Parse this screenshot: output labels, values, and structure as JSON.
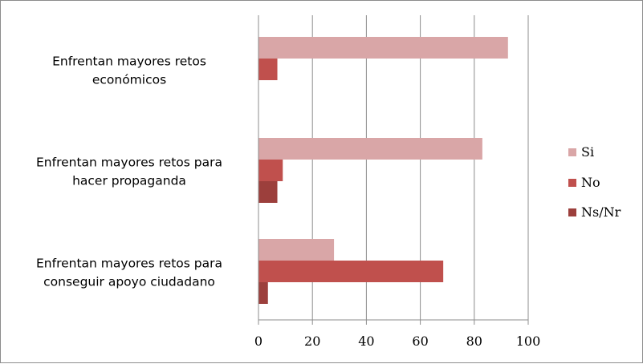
{
  "chart_data": {
    "type": "bar",
    "orientation": "horizontal",
    "categories": [
      [
        "Enfrentan mayores retos",
        "económicos"
      ],
      [
        "Enfrentan mayores retos para",
        "hacer propaganda"
      ],
      [
        "Enfrentan mayores retos para",
        "conseguir apoyo ciudadano"
      ]
    ],
    "series": [
      {
        "name": "Si",
        "values": [
          92.5,
          83,
          28
        ]
      },
      {
        "name": "No",
        "values": [
          7,
          9,
          68.5
        ]
      },
      {
        "name": "Ns/Nr",
        "values": [
          0,
          7,
          3.5
        ]
      }
    ],
    "xlim": [
      0,
      100
    ],
    "xticks": [
      "0",
      "20",
      "40",
      "60",
      "80",
      "100"
    ],
    "grid": true,
    "legend_position": "right",
    "colors": [
      "#d9a6a7",
      "#c0504d",
      "#9c3f3c"
    ]
  }
}
